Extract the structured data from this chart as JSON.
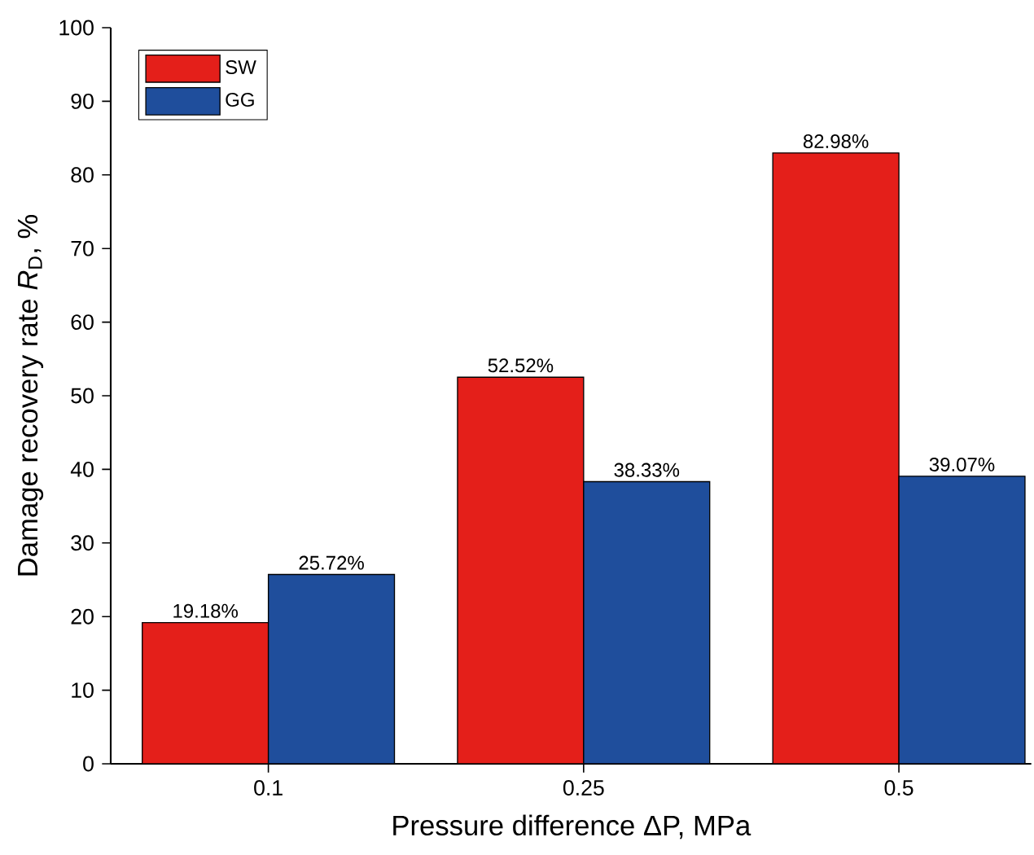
{
  "chart_data": {
    "type": "bar",
    "xlabel": "Pressure difference ΔP, MPa",
    "ylabel": "Damage recovery rate *R*$_{D}$, %",
    "categories": [
      "0.1",
      "0.25",
      "0.5"
    ],
    "series": [
      {
        "name": "SW",
        "color": "#e41f1a",
        "values": [
          19.18,
          52.52,
          82.98
        ],
        "value_labels": [
          "19.18%",
          "52.52%",
          "82.98%"
        ]
      },
      {
        "name": "GG",
        "color": "#1f4e9c",
        "values": [
          25.72,
          38.33,
          39.07
        ],
        "value_labels": [
          "25.72%",
          "38.33%",
          "39.07%"
        ]
      }
    ],
    "ylim": [
      0,
      100
    ],
    "yticks": [
      0,
      10,
      20,
      30,
      40,
      50,
      60,
      70,
      80,
      90,
      100
    ],
    "legend": "top left",
    "grid": false
  }
}
